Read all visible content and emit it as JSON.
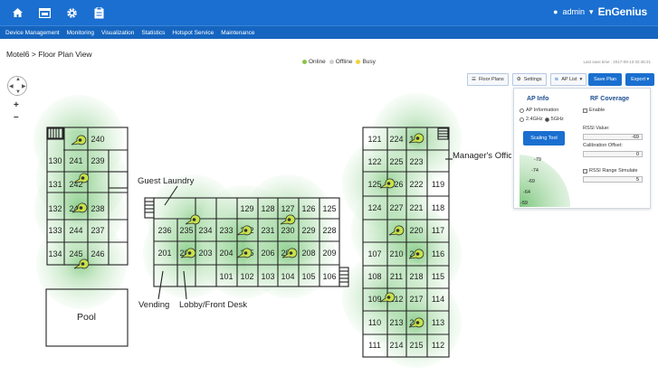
{
  "topbar": {
    "user": "admin",
    "brand": "EnGenius",
    "icons": [
      "home-icon",
      "window-icon",
      "gear-icon",
      "clipboard-icon"
    ]
  },
  "nav": {
    "items": [
      "Device Management",
      "Monitoring",
      "Visualization",
      "Statistics",
      "Hotspot Service",
      "Maintenance"
    ]
  },
  "page": {
    "breadcrumb": "Motel6 > Floor Plan View",
    "legend": {
      "online": "Online",
      "offline": "Offline",
      "busy": "Busy"
    },
    "save_time": "Last save time : 2017-09-13 02:46:21"
  },
  "toolbar": {
    "floor_plans": "Floor Plans",
    "settings": "Settings",
    "ap_list": "AP List",
    "save_plan": "Save Plan",
    "export": "Export"
  },
  "panel": {
    "ap_info_title": "AP Info",
    "ap_information": "AP Information",
    "band_24": "2.4GHz",
    "band_5": "5GHz",
    "scaling_tool": "Scaling Tool",
    "rf_title": "RF Coverage",
    "enable": "Enable",
    "rssi_label": "RSSI Value:",
    "rssi_value": "-69",
    "calib_label": "Calibration Offset:",
    "calib_value": "0",
    "rssi_sim": "RSSI Range Simulate",
    "rssi_sim_value": "5",
    "rssi_scale": [
      "-79",
      "-74",
      "-69",
      "-64",
      "-59"
    ]
  },
  "plan": {
    "left_block": {
      "row1": [
        "240"
      ],
      "row2": [
        "130",
        "241",
        "239"
      ],
      "row3": [
        "131",
        "242"
      ],
      "row4": [
        "132",
        "243",
        "238"
      ],
      "row5": [
        "133",
        "244",
        "237"
      ],
      "row6": [
        "134",
        "245",
        "246"
      ]
    },
    "mid_top": [
      "129",
      "128",
      "127",
      "126",
      "125"
    ],
    "mid_row": [
      "236",
      "235",
      "234",
      "233",
      "232",
      "231",
      "230",
      "229",
      "228"
    ],
    "mid_row2": [
      "201",
      "202",
      "203",
      "204",
      "205",
      "206",
      "207",
      "208",
      "209"
    ],
    "mid_bottom": [
      "101",
      "102",
      "103",
      "104",
      "105",
      "106"
    ],
    "right_rows": [
      [
        "121",
        "224",
        "123"
      ],
      [
        "122",
        "225",
        "223"
      ],
      [
        "125",
        "226",
        "222",
        "119"
      ],
      [
        "124",
        "227",
        "221",
        "118"
      ],
      [
        "",
        "",
        "220",
        "117"
      ],
      [
        "107",
        "210",
        "219",
        "116"
      ],
      [
        "108",
        "211",
        "218",
        "115"
      ],
      [
        "109",
        "212",
        "217",
        "114"
      ],
      [
        "110",
        "213",
        "216",
        "113"
      ],
      [
        "111",
        "214",
        "215",
        "112"
      ]
    ],
    "labels": {
      "guest_laundry": "Guest Laundry",
      "managers_office": "Manager's Office",
      "pool": "Pool",
      "vending": "Vending",
      "lobby": "Lobby/Front Desk"
    }
  }
}
